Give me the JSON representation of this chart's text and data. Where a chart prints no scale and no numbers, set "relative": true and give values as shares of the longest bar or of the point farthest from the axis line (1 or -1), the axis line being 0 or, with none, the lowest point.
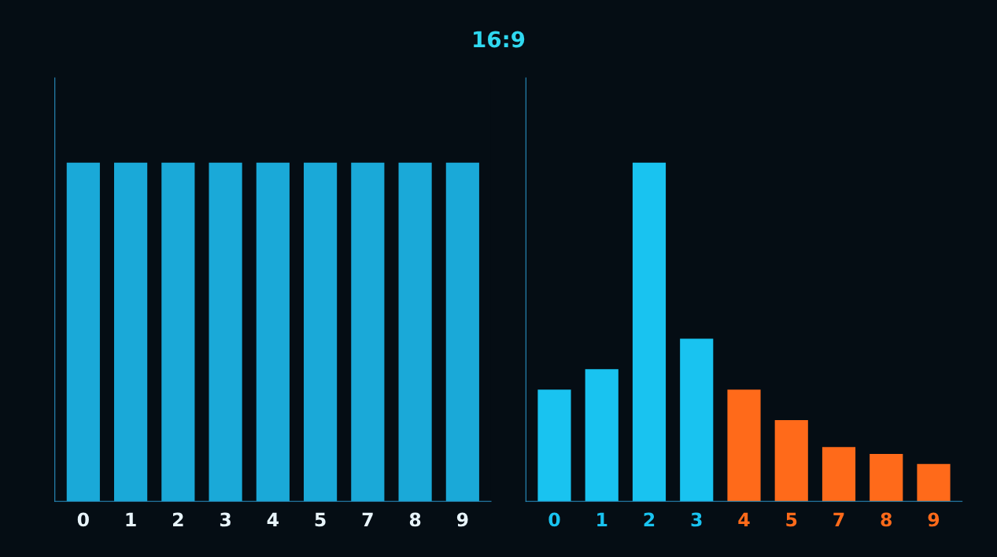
{
  "chart_data": [
    {
      "type": "bar",
      "title": "16:9",
      "relative": true,
      "categories": [
        "0",
        "1",
        "2",
        "3",
        "4",
        "5",
        "7",
        "8",
        "9"
      ],
      "values": [
        1,
        1,
        1,
        1,
        1,
        1,
        1,
        1,
        1
      ],
      "color": "#1aa9d8"
    },
    {
      "type": "bar",
      "relative": true,
      "categories": [
        "0",
        "1",
        "2",
        "3",
        "4",
        "5",
        "7",
        "8",
        "9"
      ],
      "values": [
        0.33,
        0.39,
        1,
        0.48,
        0.33,
        0.24,
        0.16,
        0.14,
        0.11
      ],
      "colors": [
        "#19c3f0",
        "#19c3f0",
        "#19c3f0",
        "#19c3f0",
        "#ff6a1a",
        "#ff6a1a",
        "#ff6a1a",
        "#ff6a1a",
        "#ff6a1a"
      ]
    }
  ]
}
